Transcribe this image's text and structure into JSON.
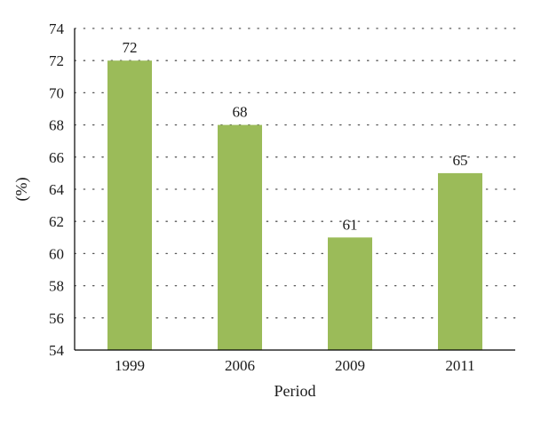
{
  "chart_data": {
    "type": "bar",
    "title": "",
    "xlabel": "Period",
    "ylabel": "(%)",
    "categories": [
      "1999",
      "2006",
      "2009",
      "2011"
    ],
    "values": [
      72,
      68,
      61,
      65
    ],
    "data_labels": [
      "72",
      "68",
      "61",
      "65"
    ],
    "ylim": [
      54,
      74
    ],
    "yticks": [
      54,
      56,
      58,
      60,
      62,
      64,
      66,
      68,
      70,
      72,
      74
    ],
    "grid": "horizontal dotted",
    "legend": "none",
    "colors": {
      "bar": "#9bbb59",
      "axis": "#000000",
      "grid": "#555555"
    }
  }
}
